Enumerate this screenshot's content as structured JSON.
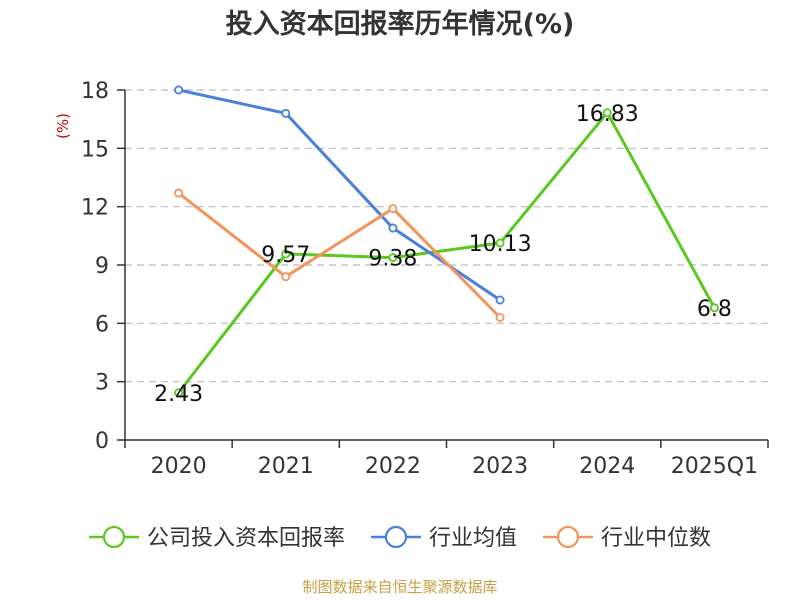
{
  "chart_data": {
    "type": "line",
    "title": "投入资本回报率历年情况(%)",
    "ylabel": "(%)",
    "categories": [
      "2020",
      "2021",
      "2022",
      "2023",
      "2024",
      "2025Q1"
    ],
    "ylim": [
      0,
      18
    ],
    "yticks": [
      0,
      3,
      6,
      9,
      12,
      15,
      18
    ],
    "grid": true,
    "legend_position": "bottom",
    "series": [
      {
        "name": "公司投入资本回报率",
        "color": "#5ac820",
        "values": [
          2.43,
          9.57,
          9.38,
          10.13,
          16.83,
          6.8
        ],
        "labels": [
          "2.43",
          "9.57",
          "9.38",
          "10.13",
          "16.83",
          "6.8"
        ]
      },
      {
        "name": "行业均值",
        "color": "#4a7fdc",
        "values": [
          18.0,
          16.8,
          10.9,
          7.2,
          null,
          null
        ]
      },
      {
        "name": "行业中位数",
        "color": "#f4935a",
        "values": [
          12.7,
          8.4,
          11.9,
          6.3,
          null,
          null
        ]
      }
    ]
  },
  "source_text": "制图数据来自恒生聚源数据库"
}
